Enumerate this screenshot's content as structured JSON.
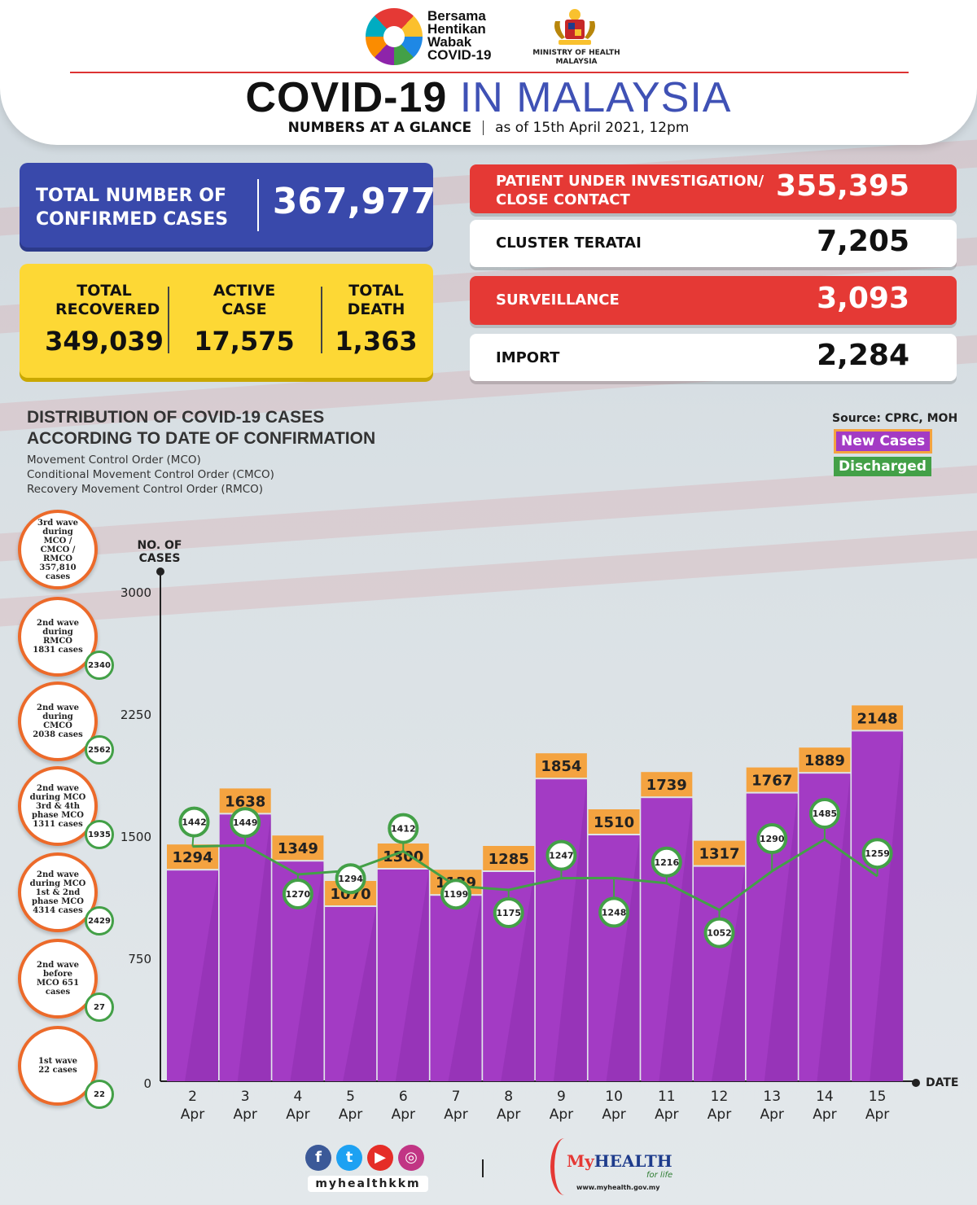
{
  "header": {
    "campaign_lines": [
      "Bersama",
      "Hentikan",
      "Wabak",
      "COVID-19"
    ],
    "ministry": "MINISTRY OF HEALTH MALAYSIA",
    "title_bold": "COVID-19",
    "title_light": "IN MALAYSIA",
    "subtitle_bold": "NUMBERS AT A GLANCE",
    "subtitle_date": "as of 15th April 2021, 12pm"
  },
  "summary": {
    "confirmed_label": "TOTAL NUMBER OF CONFIRMED CASES",
    "confirmed_value": "367,977",
    "recovered_label": "TOTAL RECOVERED",
    "recovered_value": "349,039",
    "active_label": "ACTIVE CASE",
    "active_value": "17,575",
    "death_label": "TOTAL DEATH",
    "death_value": "1,363"
  },
  "stats": [
    {
      "label": "PATIENT UNDER INVESTIGATION/ CLOSE CONTACT",
      "value": "355,395",
      "style": "red"
    },
    {
      "label": "CLUSTER TERATAI",
      "value": "7,205",
      "style": "white"
    },
    {
      "label": "SURVEILLANCE",
      "value": "3,093",
      "style": "red"
    },
    {
      "label": "IMPORT",
      "value": "2,284",
      "style": "white"
    }
  ],
  "distribution": {
    "title_line1": "DISTRIBUTION OF COVID-19 CASES",
    "title_line2": "ACCORDING TO DATE OF CONFIRMATION",
    "notes": [
      "Movement Control Order (MCO)",
      "Conditional Movement Control Order (CMCO)",
      "Recovery Movement Control Order (RMCO)"
    ],
    "source": "Source: CPRC, MOH",
    "legend_new": "New Cases",
    "legend_discharged": "Discharged"
  },
  "waves": [
    {
      "text": "3rd wave during MCO / CMCO / RMCO 357,810 cases",
      "discharged": ""
    },
    {
      "text": "2nd wave during RMCO 1831 cases",
      "discharged": "2340"
    },
    {
      "text": "2nd wave during CMCO 2038 cases",
      "discharged": "2562"
    },
    {
      "text": "2nd wave during MCO 3rd & 4th phase MCO 1311 cases",
      "discharged": "1935"
    },
    {
      "text": "2nd wave during MCO 1st & 2nd phase MCO 4314 cases",
      "discharged": "2429"
    },
    {
      "text": "2nd wave before MCO 651 cases",
      "discharged": "27"
    },
    {
      "text": "1st wave 22 cases",
      "discharged": "22"
    }
  ],
  "chart_data": {
    "type": "bar",
    "ylabel": "NO. OF CASES",
    "xlabel": "DATE",
    "ylim": [
      0,
      3000
    ],
    "yticks": [
      0,
      750,
      1500,
      2250,
      3000
    ],
    "categories": [
      "2 Apr",
      "3 Apr",
      "4 Apr",
      "5 Apr",
      "6 Apr",
      "7 Apr",
      "8 Apr",
      "9 Apr",
      "10 Apr",
      "11 Apr",
      "12 Apr",
      "13 Apr",
      "14 Apr",
      "15 Apr"
    ],
    "series": [
      {
        "name": "New Cases",
        "type": "bar",
        "color": "#a33bc4",
        "values": [
          1294,
          1638,
          1349,
          1070,
          1300,
          1139,
          1285,
          1854,
          1510,
          1739,
          1317,
          1767,
          1889,
          2148
        ]
      },
      {
        "name": "Discharged",
        "type": "line",
        "color": "#43a047",
        "values": [
          1442,
          1449,
          1270,
          1294,
          1412,
          1199,
          1175,
          1247,
          1248,
          1216,
          1052,
          1290,
          1485,
          1259
        ]
      }
    ]
  },
  "footer": {
    "handle": "myhealthkkm",
    "brand_my": "My",
    "brand_health": "HEALTH",
    "brand_tag": "for life",
    "url": "www.myhealth.gov.my"
  }
}
